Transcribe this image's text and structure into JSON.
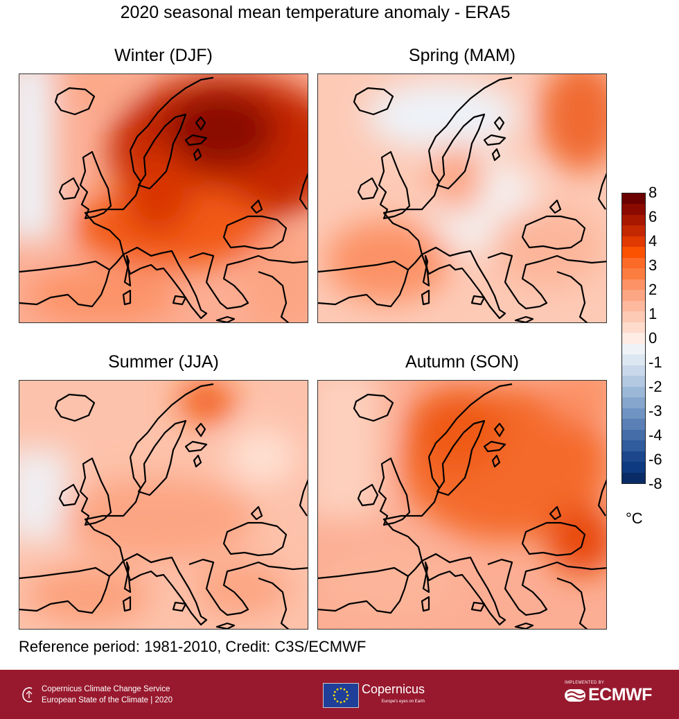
{
  "title": "2020 seasonal mean temperature anomaly - ERA5",
  "panels": [
    {
      "id": "winter",
      "label": "Winter (DJF)"
    },
    {
      "id": "spring",
      "label": "Spring (MAM)"
    },
    {
      "id": "summer",
      "label": "Summer (JJA)"
    },
    {
      "id": "autumn",
      "label": "Autumn (SON)"
    }
  ],
  "colorbar": {
    "ticks": [
      "8",
      "6",
      "4",
      "3",
      "2",
      "1",
      "0",
      "-1",
      "-2",
      "-3",
      "-4",
      "-6",
      "-8"
    ],
    "unit": "°C",
    "colors": [
      "#6b0000",
      "#8a0a00",
      "#a81800",
      "#c42800",
      "#e03a00",
      "#fa5200",
      "#fc6a28",
      "#fc7d40",
      "#fc9266",
      "#fca583",
      "#fdb89e",
      "#fdcab6",
      "#fedbcd",
      "#feece5",
      "#eff3f8",
      "#dde7f1",
      "#c9d8ea",
      "#b3c8e1",
      "#9cb8d8",
      "#86a6cd",
      "#6f93c2",
      "#5a80b6",
      "#456ea9",
      "#305b9c",
      "#1d478d",
      "#0d3a80",
      "#0a2c66"
    ]
  },
  "credit": "Reference period: 1981-2010, Credit: C3S/ECMWF",
  "footer": {
    "service_line1": "Copernicus Climate Change Service",
    "service_line2": "European State of the Climate | 2020",
    "copernicus": "Copernicus",
    "copernicus_tagline": "Europe's eyes on Earth",
    "implemented_by": "IMPLEMENTED BY",
    "ecmwf": "ECMWF",
    "background": "#98192e"
  }
}
